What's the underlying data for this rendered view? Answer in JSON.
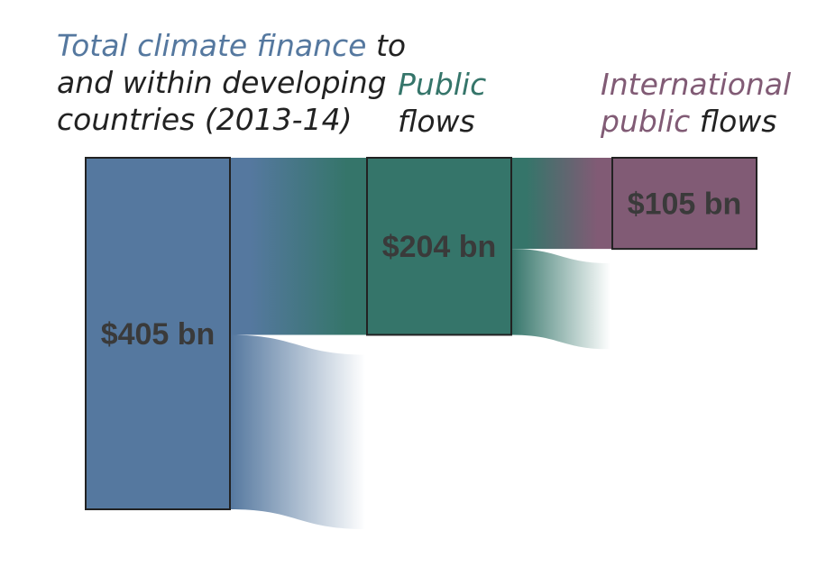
{
  "chart_data": {
    "type": "sankey",
    "unit": "bn",
    "nodes": [
      {
        "id": "total",
        "value": 405,
        "label": "$405 bn",
        "color": "#55789f",
        "heading_lines": [
          [
            {
              "text": "Total climate finance",
              "color": "#55789f"
            },
            {
              "text": " to",
              "color": "#222222"
            }
          ],
          [
            {
              "text": "and within developing",
              "color": "#222222"
            }
          ],
          [
            {
              "text": "countries (2013-14)",
              "color": "#222222"
            }
          ]
        ]
      },
      {
        "id": "public",
        "value": 204,
        "label": "$204 bn",
        "color": "#35756a",
        "heading_lines": [
          [
            {
              "text": "Public",
              "color": "#35756a"
            }
          ],
          [
            {
              "text": "flows",
              "color": "#222222"
            }
          ]
        ]
      },
      {
        "id": "international",
        "value": 105,
        "label": "$105 bn",
        "color": "#815b75",
        "heading_lines": [
          [
            {
              "text": "International",
              "color": "#815b75"
            }
          ],
          [
            {
              "text": "public",
              "color": "#815b75"
            },
            {
              "text": " flows",
              "color": "#222222"
            }
          ]
        ]
      }
    ],
    "links": [
      {
        "source": "total",
        "target": "public",
        "value": 204
      },
      {
        "source": "total",
        "target": null,
        "value": 201
      },
      {
        "source": "public",
        "target": "international",
        "value": 105
      },
      {
        "source": "public",
        "target": null,
        "value": 99
      }
    ]
  }
}
